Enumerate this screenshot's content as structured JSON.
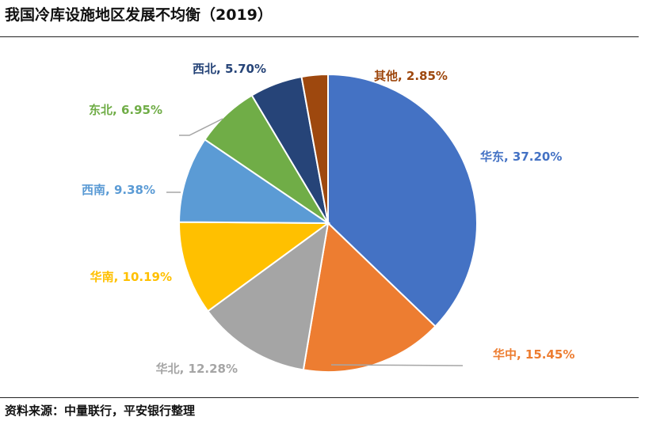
{
  "title": "我国冷库设施地区发展不均衡（2019）",
  "source": "资料来源：中量联行，平安银行整理",
  "chart_data": {
    "type": "pie",
    "slices": [
      {
        "name": "华东",
        "value": 37.2,
        "label": "华东, 37.20%",
        "color": "#4472C4"
      },
      {
        "name": "华中",
        "value": 15.45,
        "label": "华中, 15.45%",
        "color": "#ED7D31"
      },
      {
        "name": "华北",
        "value": 12.28,
        "label": "华北, 12.28%",
        "color": "#A5A5A5"
      },
      {
        "name": "华南",
        "value": 10.19,
        "label": "华南, 10.19%",
        "color": "#FFC000"
      },
      {
        "name": "西南",
        "value": 9.38,
        "label": "西南, 9.38%",
        "color": "#5B9BD5"
      },
      {
        "name": "东北",
        "value": 6.95,
        "label": "东北, 6.95%",
        "color": "#70AD47"
      },
      {
        "name": "西北",
        "value": 5.7,
        "label": "西北, 5.70%",
        "color": "#264478"
      },
      {
        "name": "其他",
        "value": 2.85,
        "label": "其他, 2.85%",
        "color": "#9E480E"
      }
    ]
  }
}
